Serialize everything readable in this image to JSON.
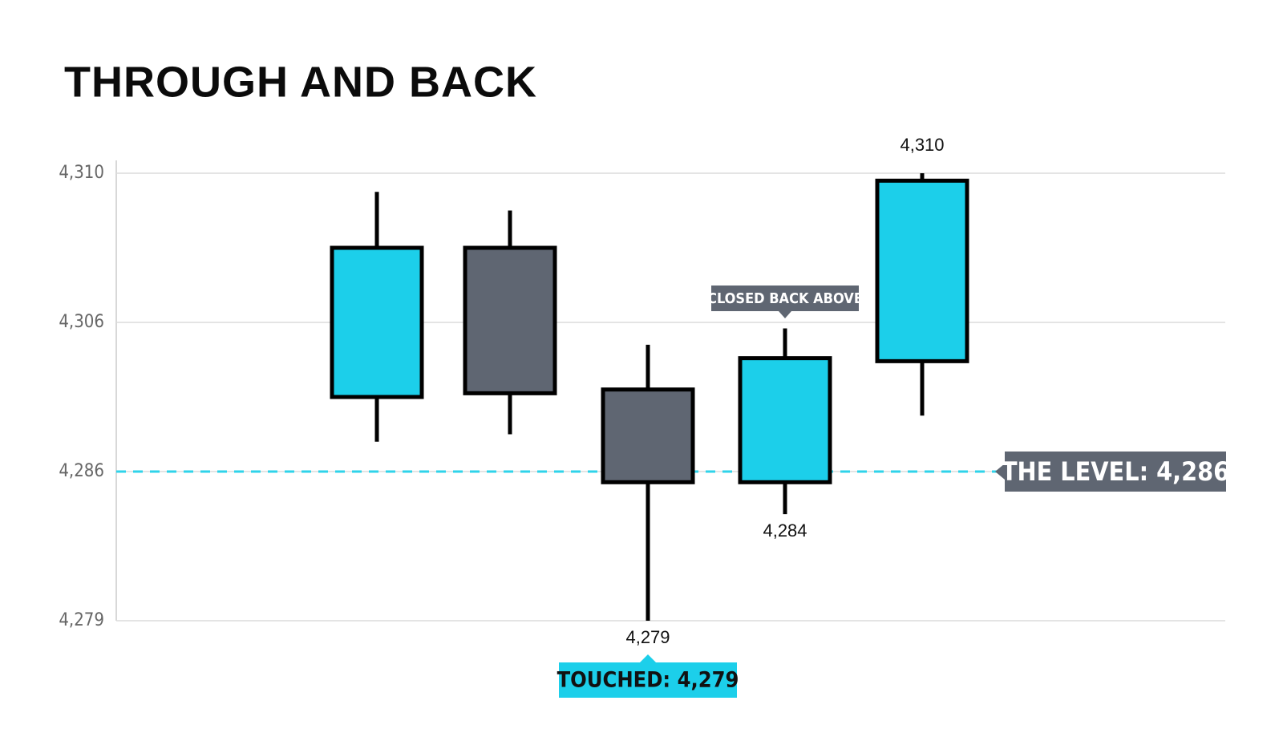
{
  "chart_data": {
    "type": "candlestick",
    "title": "THROUGH AND BACK",
    "categories": [
      null,
      null,
      null,
      null,
      null
    ],
    "open": [
      4296,
      4308,
      4297,
      4285.5,
      4300.8
    ],
    "high": [
      4309.5,
      4309,
      4303,
      4305.2,
      4310
    ],
    "low": [
      4290,
      4291,
      4279,
      4284,
      4293.5
    ],
    "close": [
      4308,
      4296.5,
      4285.5,
      4301.2,
      4309.8
    ],
    "low_labels": [
      null,
      null,
      "4,279",
      "4,284",
      null
    ],
    "high_labels": [
      null,
      null,
      null,
      null,
      "4,310"
    ],
    "up_color": "#1ccfea",
    "down_color": "#5f6672",
    "ylim": [
      4279,
      4310
    ],
    "yticks": [
      {
        "value": 4279,
        "label": "4,279"
      },
      {
        "value": 4286,
        "label": "4,286"
      },
      {
        "value": 4306,
        "label": "4,306"
      },
      {
        "value": 4310,
        "label": "4,310"
      }
    ],
    "yscale": "tick-spaced",
    "grid": true,
    "level": {
      "value": 4286,
      "label": "THE LEVEL: 4,286",
      "color": "#2fd3ea"
    },
    "annotations": [
      "CLOSED BACK ABOVE",
      "TOUCHED: 4,279"
    ]
  }
}
